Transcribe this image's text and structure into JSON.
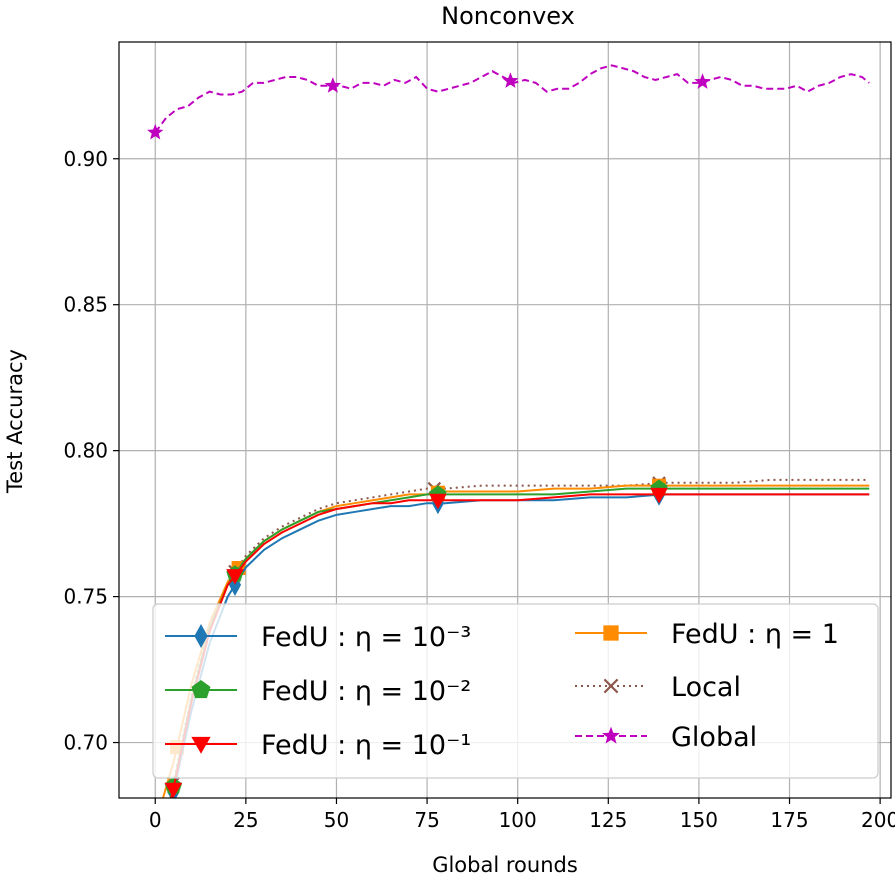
{
  "chart_data": {
    "type": "line",
    "title": "Nonconvex",
    "xlabel": "Global rounds",
    "ylabel": "Test Accuracy",
    "xlim": [
      -10,
      203
    ],
    "ylim": [
      0.681,
      0.94
    ],
    "xticks": [
      0,
      25,
      50,
      75,
      100,
      125,
      150,
      175,
      200
    ],
    "xtick_labels": [
      "0",
      "25",
      "50",
      "75",
      "100",
      "125",
      "150",
      "175",
      "200"
    ],
    "yticks": [
      0.7,
      0.75,
      0.8,
      0.85,
      0.9
    ],
    "ytick_labels": [
      "0.70",
      "0.75",
      "0.80",
      "0.85",
      "0.90"
    ],
    "grid": true,
    "legend_position": "lower center",
    "series": [
      {
        "name": "FedU : η = 10⁻³",
        "color": "#1f77b4",
        "marker": "thin_diamond",
        "linestyle": "solid",
        "x": [
          0,
          5,
          10,
          15,
          20,
          25,
          30,
          35,
          40,
          45,
          50,
          55,
          60,
          65,
          70,
          75,
          80,
          90,
          100,
          110,
          120,
          130,
          140,
          150,
          160,
          170,
          180,
          190,
          197
        ],
        "y": [
          0.659,
          0.683,
          0.711,
          0.734,
          0.75,
          0.76,
          0.766,
          0.77,
          0.773,
          0.776,
          0.778,
          0.779,
          0.78,
          0.781,
          0.781,
          0.782,
          0.782,
          0.783,
          0.783,
          0.783,
          0.784,
          0.784,
          0.785,
          0.785,
          0.785,
          0.785,
          0.785,
          0.785,
          0.785
        ],
        "marker_x": [
          5,
          22,
          78,
          139
        ]
      },
      {
        "name": "FedU : η = 10⁻²",
        "color": "#2ca02c",
        "marker": "pentagon",
        "linestyle": "solid",
        "x": [
          0,
          5,
          10,
          15,
          20,
          25,
          30,
          35,
          40,
          45,
          50,
          55,
          60,
          65,
          70,
          75,
          80,
          90,
          100,
          110,
          120,
          130,
          140,
          150,
          160,
          170,
          180,
          190,
          197
        ],
        "y": [
          0.66,
          0.685,
          0.715,
          0.739,
          0.754,
          0.763,
          0.769,
          0.773,
          0.776,
          0.779,
          0.78,
          0.781,
          0.782,
          0.783,
          0.784,
          0.785,
          0.785,
          0.785,
          0.785,
          0.785,
          0.786,
          0.787,
          0.787,
          0.787,
          0.787,
          0.787,
          0.787,
          0.787,
          0.787
        ],
        "marker_x": [
          5,
          22,
          78,
          139
        ]
      },
      {
        "name": "FedU : η = 10⁻¹",
        "color": "#ff0000",
        "marker": "triangle_down",
        "linestyle": "solid",
        "x": [
          0,
          5,
          10,
          15,
          20,
          25,
          30,
          35,
          40,
          45,
          50,
          55,
          60,
          65,
          70,
          75,
          80,
          90,
          100,
          110,
          120,
          130,
          140,
          150,
          160,
          170,
          180,
          190,
          197
        ],
        "y": [
          0.66,
          0.684,
          0.714,
          0.738,
          0.754,
          0.762,
          0.768,
          0.772,
          0.775,
          0.778,
          0.78,
          0.781,
          0.782,
          0.782,
          0.783,
          0.783,
          0.783,
          0.783,
          0.783,
          0.784,
          0.785,
          0.785,
          0.785,
          0.785,
          0.785,
          0.785,
          0.785,
          0.785,
          0.785
        ],
        "marker_x": [
          5,
          22,
          78,
          139
        ]
      },
      {
        "name": "FedU : η = 1",
        "color": "#ff8c00",
        "marker": "square",
        "linestyle": "solid",
        "x": [
          0,
          5,
          10,
          15,
          20,
          25,
          30,
          35,
          40,
          45,
          50,
          55,
          60,
          65,
          70,
          75,
          80,
          90,
          100,
          110,
          120,
          130,
          140,
          150,
          160,
          170,
          180,
          190,
          197
        ],
        "y": [
          0.672,
          0.693,
          0.72,
          0.741,
          0.755,
          0.763,
          0.769,
          0.773,
          0.776,
          0.779,
          0.781,
          0.782,
          0.783,
          0.784,
          0.785,
          0.785,
          0.786,
          0.786,
          0.786,
          0.787,
          0.787,
          0.788,
          0.788,
          0.788,
          0.788,
          0.788,
          0.788,
          0.788,
          0.788
        ],
        "marker_x": [
          6,
          23,
          78,
          139
        ]
      },
      {
        "name": "Local",
        "color": "#8c564b",
        "marker": "x",
        "linestyle": "dotted",
        "x": [
          0,
          5,
          10,
          15,
          20,
          25,
          30,
          35,
          40,
          45,
          50,
          55,
          60,
          65,
          70,
          75,
          80,
          90,
          100,
          110,
          120,
          130,
          140,
          150,
          160,
          170,
          180,
          190,
          197
        ],
        "y": [
          0.662,
          0.686,
          0.716,
          0.74,
          0.755,
          0.764,
          0.77,
          0.774,
          0.777,
          0.78,
          0.782,
          0.783,
          0.784,
          0.785,
          0.786,
          0.787,
          0.787,
          0.788,
          0.788,
          0.788,
          0.788,
          0.788,
          0.789,
          0.789,
          0.789,
          0.79,
          0.79,
          0.79,
          0.79
        ],
        "marker_x": [
          5,
          22,
          77,
          139
        ]
      },
      {
        "name": "Global",
        "color": "#bf00bf",
        "marker": "star",
        "linestyle": "dashed",
        "x": [
          0,
          3,
          6,
          9,
          12,
          15,
          18,
          21,
          24,
          27,
          30,
          33,
          36,
          39,
          42,
          45,
          48,
          51,
          54,
          57,
          60,
          63,
          66,
          69,
          72,
          75,
          78,
          81,
          84,
          87,
          90,
          93,
          96,
          99,
          102,
          105,
          108,
          111,
          114,
          117,
          120,
          123,
          126,
          129,
          132,
          135,
          138,
          141,
          144,
          147,
          150,
          153,
          156,
          159,
          162,
          165,
          168,
          171,
          174,
          177,
          180,
          183,
          186,
          189,
          192,
          195,
          197
        ],
        "y": [
          0.909,
          0.914,
          0.917,
          0.918,
          0.921,
          0.923,
          0.922,
          0.922,
          0.923,
          0.926,
          0.926,
          0.927,
          0.928,
          0.928,
          0.927,
          0.925,
          0.925,
          0.925,
          0.924,
          0.926,
          0.926,
          0.925,
          0.927,
          0.926,
          0.928,
          0.924,
          0.923,
          0.924,
          0.925,
          0.926,
          0.928,
          0.93,
          0.928,
          0.926,
          0.927,
          0.926,
          0.923,
          0.924,
          0.924,
          0.926,
          0.929,
          0.931,
          0.932,
          0.931,
          0.93,
          0.928,
          0.927,
          0.928,
          0.929,
          0.926,
          0.926,
          0.927,
          0.928,
          0.927,
          0.925,
          0.925,
          0.924,
          0.924,
          0.924,
          0.925,
          0.923,
          0.925,
          0.926,
          0.928,
          0.929,
          0.928,
          0.926
        ],
        "marker_x": [
          0,
          49,
          98,
          151
        ]
      }
    ]
  }
}
